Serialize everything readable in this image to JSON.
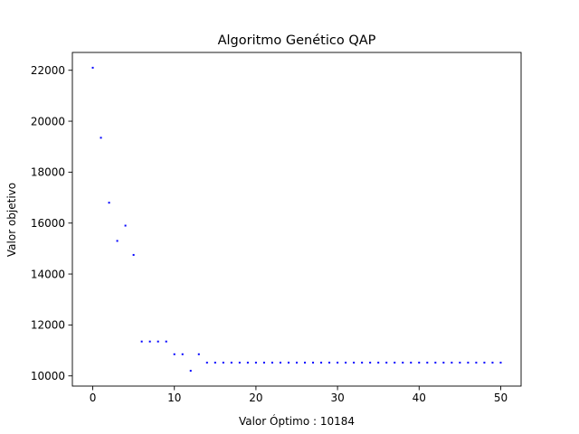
{
  "chart_data": {
    "type": "scatter",
    "title": "Algoritmo Genético QAP",
    "xlabel": "Valor Óptimo : 10184",
    "ylabel": "Valor objetivo",
    "xlim": [
      -2.5,
      52.5
    ],
    "ylim": [
      9600,
      22700
    ],
    "xticks": [
      0,
      10,
      20,
      30,
      40,
      50
    ],
    "xtick_labels": [
      "0",
      "10",
      "20",
      "30",
      "40",
      "50"
    ],
    "yticks": [
      10000,
      12000,
      14000,
      16000,
      18000,
      20000,
      22000
    ],
    "ytick_labels": [
      "10000",
      "12000",
      "14000",
      "16000",
      "18000",
      "20000",
      "22000"
    ],
    "grid": false,
    "marker_color": "#0000ff",
    "series": [
      {
        "x": [
          0,
          1,
          2,
          3,
          4,
          5,
          6,
          7,
          8,
          9,
          10,
          11,
          12,
          13,
          14,
          15,
          16,
          17,
          18,
          19,
          20,
          21,
          22,
          23,
          24,
          25,
          26,
          27,
          28,
          29,
          30,
          31,
          32,
          33,
          34,
          35,
          36,
          37,
          38,
          39,
          40,
          41,
          42,
          43,
          44,
          45,
          46,
          47,
          48,
          49,
          50
        ],
        "values": [
          22100,
          19350,
          16800,
          15300,
          15900,
          14750,
          11350,
          11350,
          11350,
          11350,
          10850,
          10850,
          10200,
          10850,
          10520,
          10520,
          10520,
          10520,
          10520,
          10520,
          10520,
          10520,
          10520,
          10520,
          10520,
          10520,
          10520,
          10520,
          10520,
          10520,
          10520,
          10520,
          10520,
          10520,
          10520,
          10520,
          10520,
          10520,
          10520,
          10520,
          10520,
          10520,
          10520,
          10520,
          10520,
          10520,
          10520,
          10520,
          10520,
          10520,
          10520
        ]
      }
    ]
  }
}
